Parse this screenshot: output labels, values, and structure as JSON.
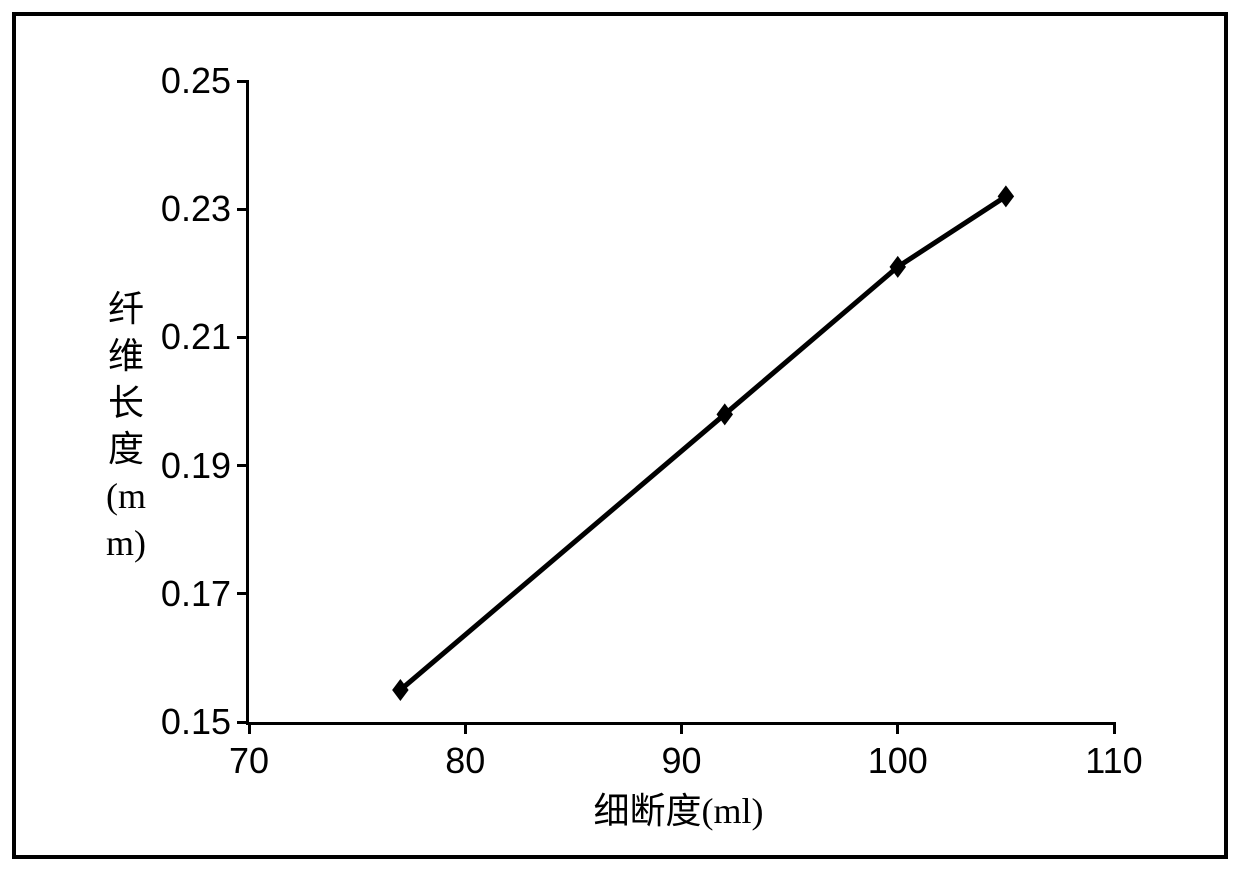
{
  "chart": {
    "type": "line",
    "y_axis_label": "纤维长度(mm)",
    "x_axis_label": "细断度(ml)",
    "xlim": [
      70,
      110
    ],
    "ylim": [
      0.15,
      0.25
    ],
    "x_ticks": [
      70,
      80,
      90,
      100,
      110
    ],
    "y_ticks": [
      0.15,
      0.17,
      0.19,
      0.21,
      0.23,
      0.25
    ],
    "x_tick_labels": [
      "70",
      "80",
      "90",
      "100",
      "110"
    ],
    "y_tick_labels": [
      "0.15",
      "0.17",
      "0.19",
      "0.21",
      "0.23",
      "0.25"
    ],
    "data_points": [
      {
        "x": 77,
        "y": 0.155
      },
      {
        "x": 92,
        "y": 0.198
      },
      {
        "x": 100,
        "y": 0.221
      },
      {
        "x": 105,
        "y": 0.232
      }
    ],
    "line_color": "#000000",
    "line_width": 5,
    "marker_shape": "diamond",
    "marker_size": 22,
    "marker_color": "#000000",
    "axis_color": "#000000",
    "background_color": "#ffffff",
    "outer_border_color": "#000000",
    "outer_border_width": 4,
    "label_fontsize": 36,
    "tick_fontsize": 36,
    "tick_font": "Arial",
    "label_font": "SimSun",
    "grid": false
  }
}
